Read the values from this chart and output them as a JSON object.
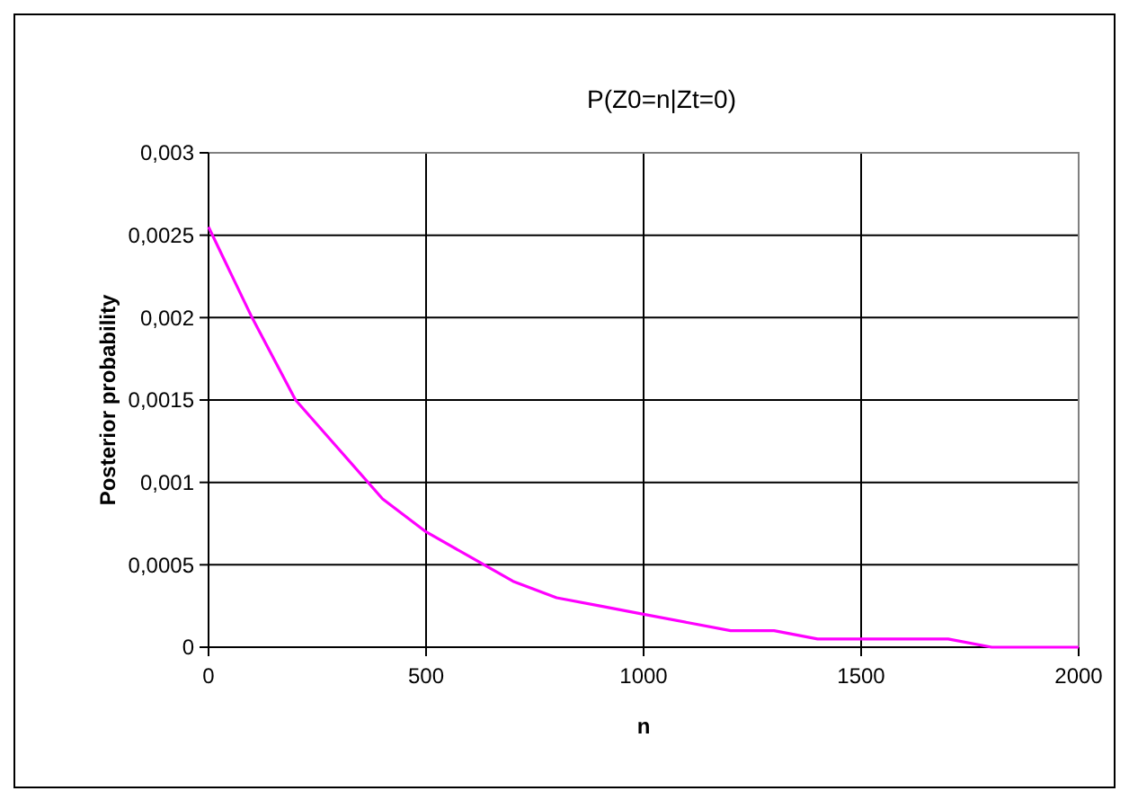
{
  "chart_data": {
    "type": "line",
    "title": "P(Z0=n|Zt=0)",
    "xlabel": "n",
    "ylabel": "Posterior probability",
    "x": [
      0,
      100,
      200,
      300,
      400,
      500,
      600,
      700,
      800,
      900,
      1000,
      1100,
      1200,
      1300,
      1400,
      1500,
      1600,
      1700,
      1800,
      1900,
      2000
    ],
    "series": [
      {
        "color": "#ff00ff",
        "values": [
          0.00255,
          0.002,
          0.0015,
          0.0012,
          0.0009,
          0.0007,
          0.00055,
          0.0004,
          0.0003,
          0.00025,
          0.0002,
          0.00015,
          0.0001,
          0.0001,
          5e-05,
          5e-05,
          5e-05,
          5e-05,
          0,
          0,
          0
        ]
      }
    ],
    "xlim": [
      0,
      2000
    ],
    "xticks": [
      0,
      500,
      1000,
      1500,
      2000
    ],
    "ylim": [
      0,
      0.003
    ],
    "yticks": [
      0,
      {
        "value": 0.0005,
        "label": "0,0005"
      },
      {
        "value": 0.001,
        "label": "0,001"
      },
      {
        "value": 0.0015,
        "label": "0,0015"
      },
      {
        "value": 0.002,
        "label": "0,002"
      },
      {
        "value": 0.0025,
        "label": "0,0025"
      },
      {
        "value": 0.003,
        "label": "0,003"
      }
    ],
    "grid": true,
    "marker": "none",
    "line_style": "solid"
  }
}
